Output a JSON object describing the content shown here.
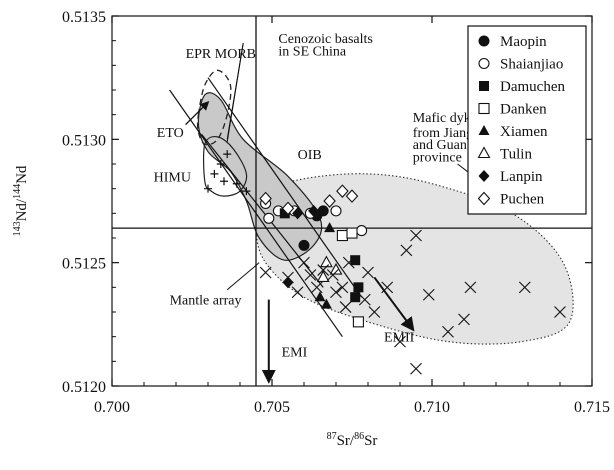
{
  "chart_data": {
    "type": "scatter",
    "xlabel": "87Sr/86Sr",
    "xlabel_parts": {
      "sup1": "87",
      "main1": "Sr/",
      "sup2": "86",
      "main2": "Sr"
    },
    "ylabel": "143Nd/144Nd",
    "ylabel_parts": {
      "sup1": "143",
      "main1": "Nd/",
      "sup2": "144",
      "main2": "Nd"
    },
    "xlim": [
      0.7,
      0.715
    ],
    "ylim": [
      0.512,
      0.5135
    ],
    "x_ticks": [
      0.7,
      0.705,
      0.71,
      0.715
    ],
    "x_tick_labels": [
      "0.700",
      "0.705",
      "0.710",
      "0.715"
    ],
    "y_ticks": [
      0.512,
      0.5125,
      0.513,
      0.5135
    ],
    "y_tick_labels": [
      "0.5120",
      "0.5125",
      "0.5130",
      "0.5135"
    ],
    "bulk_earth": {
      "x": 0.7045,
      "y": 0.51264
    },
    "legend_position": "top-right",
    "series": [
      {
        "name": "Maopin",
        "marker": "circle-filled",
        "points": [
          [
            0.706,
            0.51257
          ],
          [
            0.7064,
            0.51269
          ],
          [
            0.7066,
            0.51271
          ]
        ]
      },
      {
        "name": "Shaianjiao",
        "marker": "circle-open",
        "points": [
          [
            0.7048,
            0.51274
          ],
          [
            0.7049,
            0.51268
          ],
          [
            0.7052,
            0.51271
          ],
          [
            0.7057,
            0.51271
          ],
          [
            0.7062,
            0.5127
          ],
          [
            0.707,
            0.51271
          ],
          [
            0.7078,
            0.51263
          ]
        ]
      },
      {
        "name": "Damuchen",
        "marker": "square-filled",
        "points": [
          [
            0.7054,
            0.5127
          ],
          [
            0.7076,
            0.51251
          ],
          [
            0.7076,
            0.51236
          ],
          [
            0.7077,
            0.5124
          ]
        ]
      },
      {
        "name": "Danken",
        "marker": "square-open",
        "points": [
          [
            0.7072,
            0.51261
          ],
          [
            0.7075,
            0.51262
          ],
          [
            0.7077,
            0.51226
          ]
        ]
      },
      {
        "name": "Xiamen",
        "marker": "triangle-filled",
        "points": [
          [
            0.7065,
            0.51236
          ],
          [
            0.7067,
            0.51233
          ],
          [
            0.7068,
            0.51264
          ]
        ]
      },
      {
        "name": "Tulin",
        "marker": "triangle-open",
        "points": [
          [
            0.7066,
            0.51244
          ],
          [
            0.7067,
            0.5125
          ],
          [
            0.707,
            0.51247
          ]
        ]
      },
      {
        "name": "Lanpin",
        "marker": "diamond-filled",
        "points": [
          [
            0.7055,
            0.51242
          ],
          [
            0.7058,
            0.5127
          ],
          [
            0.7063,
            0.51271
          ]
        ]
      },
      {
        "name": "Puchen",
        "marker": "diamond-open",
        "points": [
          [
            0.7048,
            0.51276
          ],
          [
            0.7055,
            0.51272
          ],
          [
            0.7068,
            0.51275
          ],
          [
            0.7072,
            0.51279
          ],
          [
            0.7075,
            0.51277
          ]
        ]
      },
      {
        "name": "Mafic dykes (cross)",
        "marker": "cross",
        "points": [
          [
            0.7048,
            0.51246
          ],
          [
            0.7055,
            0.51244
          ],
          [
            0.7058,
            0.51238
          ],
          [
            0.7062,
            0.51245
          ],
          [
            0.7064,
            0.5124
          ],
          [
            0.7066,
            0.51247
          ],
          [
            0.7069,
            0.51245
          ],
          [
            0.707,
            0.51238
          ],
          [
            0.7072,
            0.5124
          ],
          [
            0.7073,
            0.51232
          ],
          [
            0.7074,
            0.5125
          ],
          [
            0.7079,
            0.51235
          ],
          [
            0.708,
            0.51246
          ],
          [
            0.7082,
            0.5123
          ],
          [
            0.7086,
            0.5124
          ],
          [
            0.7092,
            0.51255
          ],
          [
            0.7095,
            0.51261
          ],
          [
            0.7095,
            0.51207
          ],
          [
            0.7099,
            0.51237
          ],
          [
            0.7105,
            0.51222
          ],
          [
            0.711,
            0.51227
          ],
          [
            0.7112,
            0.5124
          ],
          [
            0.7116,
            0.51272
          ],
          [
            0.7129,
            0.5124
          ],
          [
            0.714,
            0.5123
          ],
          [
            0.706,
            0.5125
          ],
          [
            0.709,
            0.51218
          ]
        ]
      },
      {
        "name": "Cenozoic basalts (cross)",
        "marker": "cross-small",
        "points": [
          [
            0.703,
            0.5128
          ],
          [
            0.7032,
            0.51286
          ],
          [
            0.7034,
            0.5129
          ],
          [
            0.7035,
            0.51283
          ],
          [
            0.7039,
            0.51282
          ],
          [
            0.7042,
            0.51279
          ],
          [
            0.7036,
            0.51294
          ]
        ]
      }
    ],
    "regions": [
      {
        "name": "Mafic dykes from Jiangxi and Guangdong province",
        "style": "dotted-shaded",
        "outline": [
          [
            0.7047,
            0.51278
          ],
          [
            0.706,
            0.51284
          ],
          [
            0.708,
            0.51286
          ],
          [
            0.71,
            0.51282
          ],
          [
            0.7125,
            0.5127
          ],
          [
            0.7141,
            0.5125
          ],
          [
            0.7143,
            0.51226
          ],
          [
            0.7128,
            0.51218
          ],
          [
            0.7105,
            0.51218
          ],
          [
            0.708,
            0.51226
          ],
          [
            0.706,
            0.51236
          ],
          [
            0.7048,
            0.5125
          ],
          [
            0.7045,
            0.51264
          ]
        ]
      },
      {
        "name": "OIB",
        "style": "solid-shaded",
        "outline": [
          [
            0.7027,
            0.51306
          ],
          [
            0.7029,
            0.51318
          ],
          [
            0.7034,
            0.51316
          ],
          [
            0.7041,
            0.513
          ],
          [
            0.7055,
            0.51285
          ],
          [
            0.7065,
            0.51268
          ],
          [
            0.7063,
            0.51257
          ],
          [
            0.7054,
            0.51251
          ],
          [
            0.7046,
            0.5126
          ],
          [
            0.7042,
            0.51275
          ],
          [
            0.7037,
            0.51287
          ],
          [
            0.703,
            0.51295
          ]
        ]
      },
      {
        "name": "EPR MORB",
        "style": "dashed",
        "outline": [
          [
            0.7027,
            0.5131
          ],
          [
            0.7029,
            0.51322
          ],
          [
            0.7033,
            0.51328
          ],
          [
            0.7037,
            0.51322
          ],
          [
            0.7036,
            0.5131
          ],
          [
            0.7033,
            0.513
          ],
          [
            0.7029,
            0.51298
          ],
          [
            0.7027,
            0.51303
          ]
        ]
      },
      {
        "name": "HIMU",
        "style": "solid",
        "outline": [
          [
            0.7029,
            0.51283
          ],
          [
            0.7029,
            0.51298
          ],
          [
            0.7033,
            0.51301
          ],
          [
            0.7038,
            0.51296
          ],
          [
            0.7042,
            0.51286
          ],
          [
            0.704,
            0.51279
          ],
          [
            0.7035,
            0.51277
          ],
          [
            0.7031,
            0.51279
          ]
        ]
      }
    ],
    "lines": [
      {
        "name": "Mantle array boundary 1",
        "from": [
          0.7018,
          0.5132
        ],
        "to": [
          0.7072,
          0.5122
        ]
      },
      {
        "name": "Mantle array boundary 2",
        "from": [
          0.703,
          0.51325
        ],
        "to": [
          0.7078,
          0.51236
        ]
      },
      {
        "name": "Mantle array boundary 3",
        "from": [
          0.7028,
          0.51302
        ],
        "to": [
          0.7066,
          0.5124
        ]
      }
    ],
    "arrows": [
      {
        "name": "EMI arrow",
        "from": [
          0.7049,
          0.51235
        ],
        "to": [
          0.7049,
          0.51202
        ]
      },
      {
        "name": "EMII arrow",
        "from": [
          0.7082,
          0.51244
        ],
        "to": [
          0.7094,
          0.51223
        ]
      },
      {
        "name": "ETO arrow",
        "from": [
          0.7023,
          0.51306
        ],
        "to": [
          0.703,
          0.51315
        ]
      }
    ],
    "annotations": [
      {
        "id": "epr",
        "text": "EPR MORB",
        "at": [
          0.7023,
          0.51333
        ]
      },
      {
        "id": "ceno1",
        "text": "Cenozoic basalts",
        "at": [
          0.7052,
          0.51339
        ]
      },
      {
        "id": "ceno2",
        "text": "in SE China",
        "at": [
          0.7052,
          0.51334
        ]
      },
      {
        "id": "eto",
        "text": "ETO",
        "at": [
          0.7014,
          0.51301
        ]
      },
      {
        "id": "oib",
        "text": "OIB",
        "at": [
          0.7058,
          0.51292
        ]
      },
      {
        "id": "himu",
        "text": "HIMU",
        "at": [
          0.7013,
          0.51283
        ]
      },
      {
        "id": "mafic1",
        "text": "Mafic dykes",
        "at": [
          0.7094,
          0.51307
        ]
      },
      {
        "id": "mafic2",
        "text": "from Jiangxi",
        "at": [
          0.7094,
          0.51301
        ]
      },
      {
        "id": "mafic3",
        "text": "and Guangdong",
        "at": [
          0.7094,
          0.51296
        ]
      },
      {
        "id": "mafic4",
        "text": "province",
        "at": [
          0.7094,
          0.51291
        ]
      },
      {
        "id": "mantle",
        "text": "Mantle array",
        "at": [
          0.7018,
          0.51233
        ]
      },
      {
        "id": "emi",
        "text": "EMI",
        "at": [
          0.7053,
          0.51212
        ]
      },
      {
        "id": "emii",
        "text": "EMII",
        "at": [
          0.7085,
          0.51218
        ]
      }
    ]
  }
}
